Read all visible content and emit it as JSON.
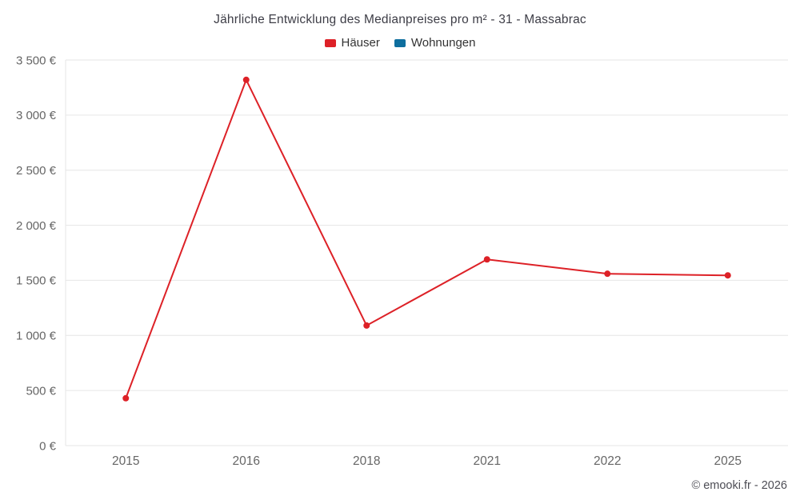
{
  "chart_data": {
    "type": "line",
    "title": "Jährliche Entwicklung des Medianpreises pro m² - 31 - Massabrac",
    "x": [
      "2015",
      "2016",
      "2018",
      "2021",
      "2022",
      "2025"
    ],
    "series": [
      {
        "name": "Häuser",
        "color": "#dd2127",
        "values": [
          430,
          3320,
          1090,
          1690,
          1560,
          1545
        ]
      },
      {
        "name": "Wohnungen",
        "color": "#0e6e9e",
        "values": []
      }
    ],
    "ylim": [
      0,
      3500
    ],
    "yticks": [
      {
        "value": 0,
        "label": "0 €"
      },
      {
        "value": 500,
        "label": "500 €"
      },
      {
        "value": 1000,
        "label": "1 000 €"
      },
      {
        "value": 1500,
        "label": "1 500 €"
      },
      {
        "value": 2000,
        "label": "2 000 €"
      },
      {
        "value": 2500,
        "label": "2 500 €"
      },
      {
        "value": 3000,
        "label": "3 000 €"
      },
      {
        "value": 3500,
        "label": "3 500 €"
      }
    ],
    "grid": "horizontal",
    "grid_color": "#e6e6e6",
    "legend_position": "top",
    "xlabel": "",
    "ylabel": ""
  },
  "footer": {
    "copyright": "© emooki.fr - 2026"
  }
}
